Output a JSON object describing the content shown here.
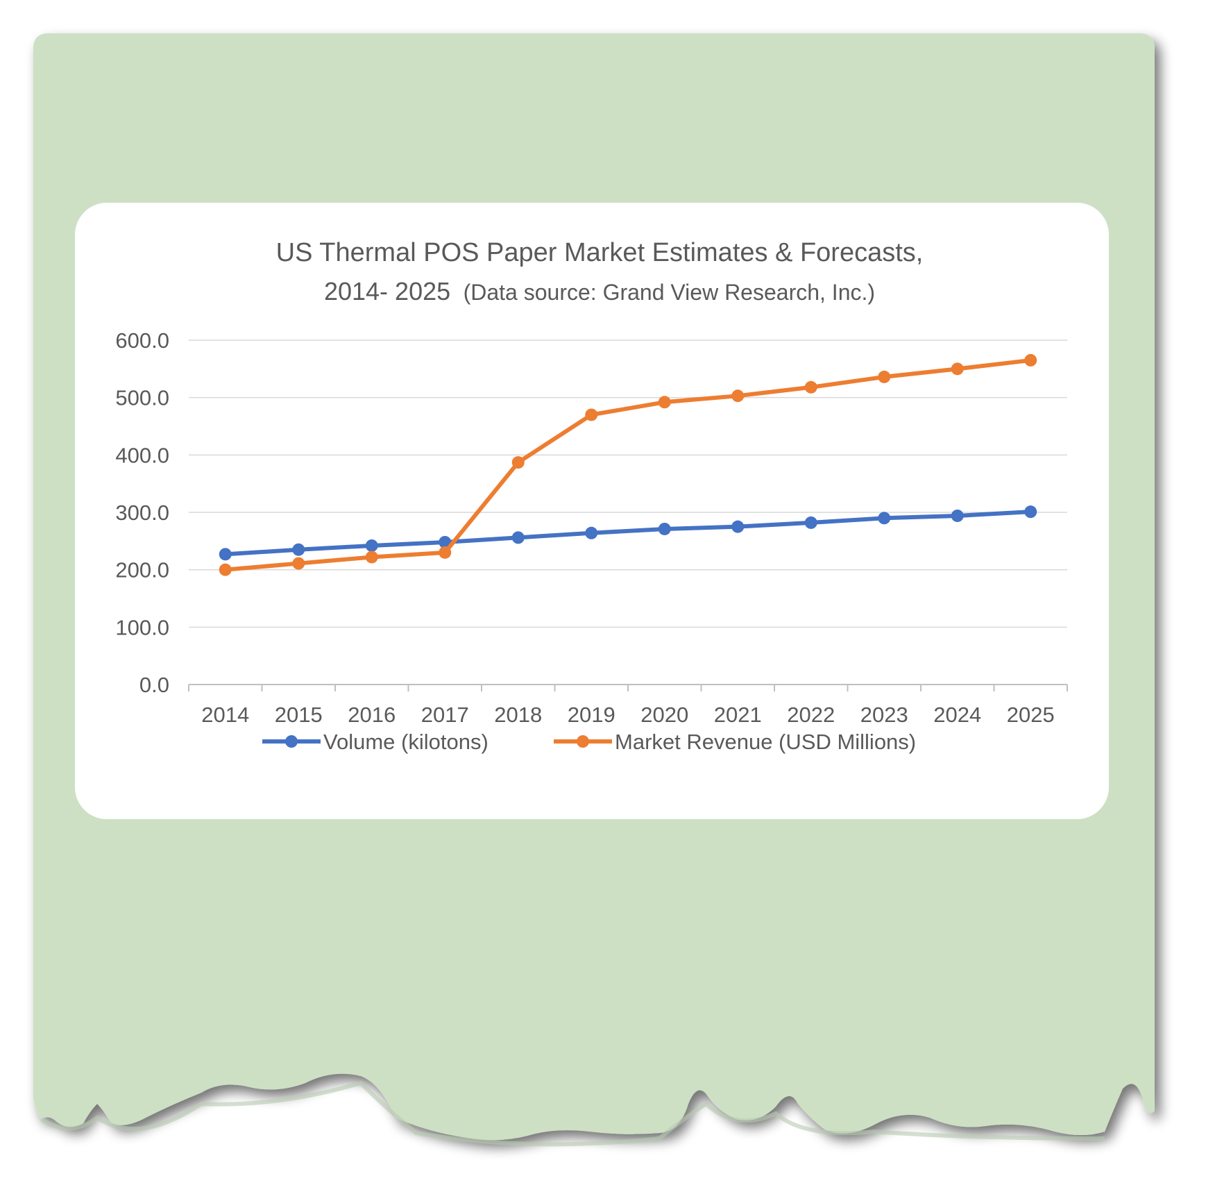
{
  "colors": {
    "paper": "#cde0c4",
    "card": "#ffffff",
    "grid": "#d9d9d9",
    "axis": "#bfbfbf",
    "text": "#595959"
  },
  "chart_data": {
    "type": "line",
    "title_line1": "US Thermal POS Paper Market Estimates & Forecasts,",
    "title_line2_main": "2014-  2025",
    "title_line2_source": "(Data source: Grand View Research, Inc.)",
    "xlabel": "",
    "ylabel": "",
    "categories": [
      "2014",
      "2015",
      "2016",
      "2017",
      "2018",
      "2019",
      "2020",
      "2021",
      "2022",
      "2023",
      "2024",
      "2025"
    ],
    "y_ticks": [
      "0.0",
      "100.0",
      "200.0",
      "300.0",
      "400.0",
      "500.0",
      "600.0"
    ],
    "ylim": [
      0,
      600
    ],
    "grid": true,
    "legend_position": "bottom",
    "series": [
      {
        "name": "Volume (kilotons)",
        "color": "#4472c4",
        "values": [
          227,
          235,
          242,
          248,
          256,
          264,
          271,
          275,
          282,
          290,
          294,
          301
        ]
      },
      {
        "name": "Market Revenue (USD Millions)",
        "color": "#ed7d31",
        "values": [
          200,
          211,
          222,
          230,
          387,
          470,
          492,
          503,
          518,
          536,
          550,
          565
        ]
      }
    ]
  }
}
